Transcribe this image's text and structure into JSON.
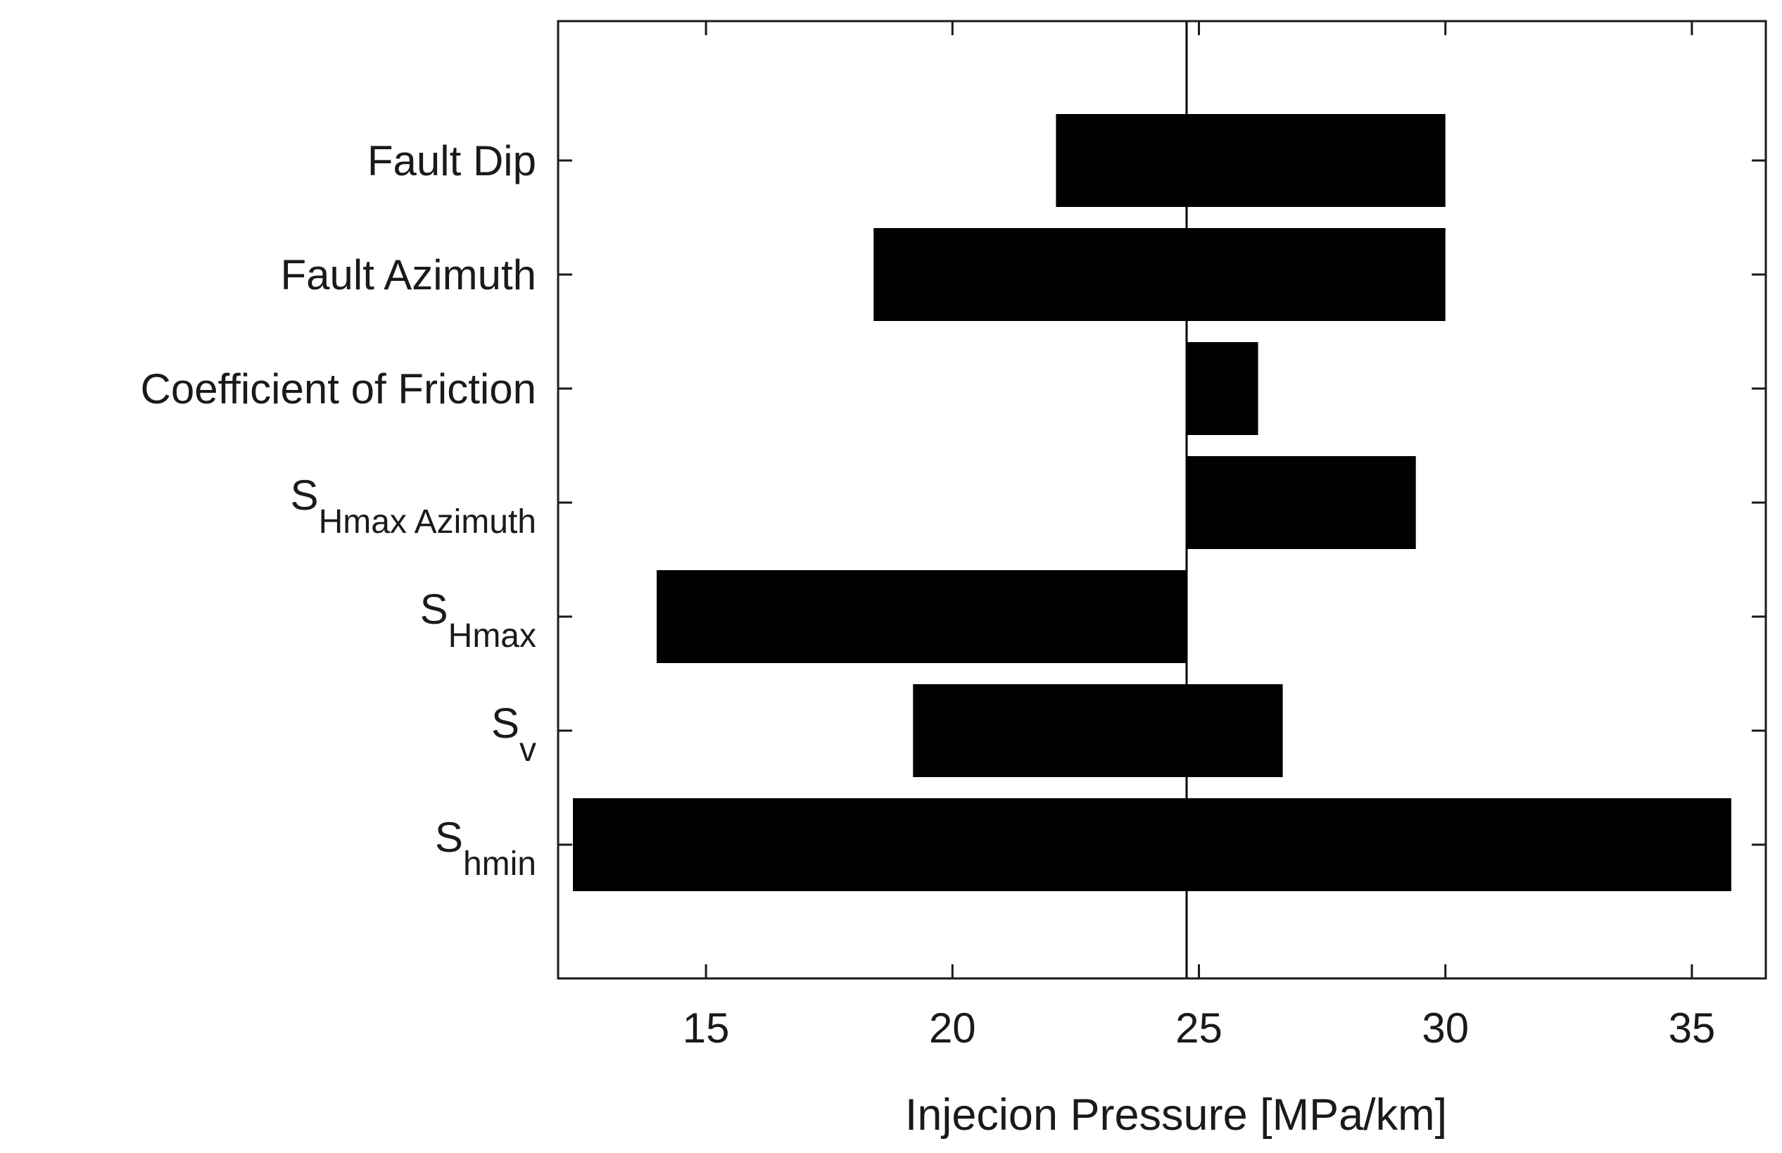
{
  "chart_data": {
    "type": "bar",
    "orientation": "horizontal",
    "style": "tornado",
    "title": "",
    "xlabel": "Injecion Pressure [MPa/km]",
    "ylabel": "",
    "xlim": [
      12,
      36.5
    ],
    "xticks": [
      15,
      20,
      25,
      30,
      35
    ],
    "xtick_labels": [
      "15",
      "20",
      "25",
      "30",
      "35"
    ],
    "reference_line": 24.75,
    "grid": false,
    "legend": "none",
    "bar_color": "#000000",
    "categories": [
      {
        "main": "Fault Dip",
        "sub": ""
      },
      {
        "main": "Fault Azimuth",
        "sub": ""
      },
      {
        "main": "Coefficient of Friction",
        "sub": ""
      },
      {
        "main": "S",
        "sub": "Hmax Azimuth"
      },
      {
        "main": "S",
        "sub": "Hmax"
      },
      {
        "main": "S",
        "sub": "v"
      },
      {
        "main": "S",
        "sub": "hmin"
      }
    ],
    "ranges": [
      [
        22.1,
        30.0
      ],
      [
        18.4,
        30.0
      ],
      [
        24.75,
        26.2
      ],
      [
        24.75,
        29.4
      ],
      [
        14.0,
        24.75
      ],
      [
        19.2,
        26.7
      ],
      [
        12.3,
        35.8
      ]
    ]
  }
}
